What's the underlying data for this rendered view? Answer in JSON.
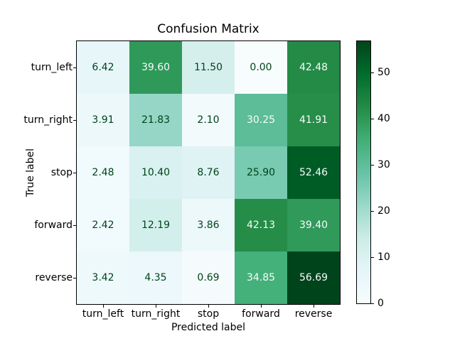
{
  "chart_data": {
    "type": "heatmap",
    "title": "Confusion Matrix",
    "xlabel": "Predicted label",
    "ylabel": "True label",
    "col_labels": [
      "turn_left",
      "turn_right",
      "stop",
      "forward",
      "reverse"
    ],
    "row_labels": [
      "turn_left",
      "turn_right",
      "stop",
      "forward",
      "reverse"
    ],
    "matrix": [
      [
        6.42,
        39.6,
        11.5,
        0.0,
        42.48
      ],
      [
        3.91,
        21.83,
        2.1,
        30.25,
        41.91
      ],
      [
        2.48,
        10.4,
        8.76,
        25.9,
        52.46
      ],
      [
        2.42,
        12.19,
        3.86,
        42.13,
        39.4
      ],
      [
        3.42,
        4.35,
        0.69,
        34.85,
        56.69
      ]
    ],
    "value_decimals": 2,
    "vmin": 0,
    "vmax": 56.69,
    "colormap": {
      "name": "BuGn",
      "colors": [
        "#f7fcfd",
        "#e5f5f9",
        "#ccece6",
        "#99d8c9",
        "#66c2a4",
        "#41ae76",
        "#238b45",
        "#006d2c",
        "#00441b"
      ]
    },
    "cell_text_colors": {
      "dark": "#00441b",
      "light": "#f7fcfd"
    },
    "colorbar_ticks": [
      0,
      10,
      20,
      30,
      40,
      50
    ],
    "legend_position": "right-colorbar",
    "grid": false,
    "axis_color": "#000000"
  }
}
